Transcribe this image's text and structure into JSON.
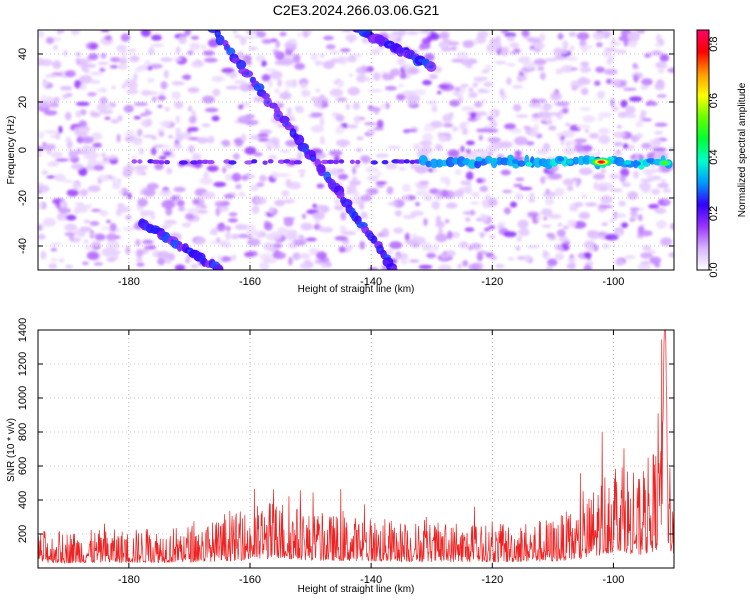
{
  "title": "C2E3.2024.266.03.06.G21",
  "chart_data": [
    {
      "type": "heatmap",
      "xlabel": "Height of straight line (km)",
      "ylabel": "Frequency (Hz)",
      "xlim": [
        -195,
        -90
      ],
      "ylim": [
        -50,
        50
      ],
      "xticks": [
        -180,
        -160,
        -140,
        -120,
        -100
      ],
      "yticks": [
        -40,
        -20,
        0,
        20,
        40
      ],
      "colorbar": {
        "label": "Normalized spectral amplitude",
        "range": [
          0.0,
          0.85
        ],
        "ticks": [
          0.0,
          0.2,
          0.4,
          0.6,
          0.8
        ],
        "colors": [
          "#ffffff",
          "#d9b3ff",
          "#9933ff",
          "#3300ff",
          "#0099ff",
          "#00ffcc",
          "#00ff33",
          "#66ff00",
          "#ffff00",
          "#ff9900",
          "#ff0000",
          "#ff0066"
        ]
      },
      "features": {
        "horizontal_line": {
          "freq": -5,
          "x_start": -180,
          "x_end": -90
        },
        "diagonal_lines": [
          {
            "from": [
              -166,
              50
            ],
            "to": [
              -150,
              -2
            ]
          },
          {
            "from": [
              -150,
              -2
            ],
            "to": [
              -136,
              -50
            ]
          },
          {
            "from": [
              -142,
              50
            ],
            "to": [
              -130,
              35
            ]
          },
          {
            "from": [
              -178,
              -30
            ],
            "to": [
              -165,
              -50
            ]
          }
        ],
        "peak": {
          "x": -102,
          "freq": -5,
          "value": 0.82
        }
      },
      "grid": true
    },
    {
      "type": "line",
      "xlabel": "Height of straight line (km)",
      "ylabel": "SNR (10 * v/v)",
      "xlim": [
        -195,
        -90
      ],
      "ylim": [
        0,
        1400
      ],
      "xticks": [
        -180,
        -160,
        -140,
        -120,
        -100
      ],
      "yticks": [
        200,
        400,
        600,
        800,
        1000,
        1200,
        1400
      ],
      "color": "#ee2222",
      "grid": true,
      "profile": [
        {
          "x": -195,
          "y": 150
        },
        {
          "x": -185,
          "y": 150
        },
        {
          "x": -175,
          "y": 160
        },
        {
          "x": -165,
          "y": 190
        },
        {
          "x": -158,
          "y": 260
        },
        {
          "x": -155,
          "y": 280
        },
        {
          "x": -150,
          "y": 220
        },
        {
          "x": -140,
          "y": 200
        },
        {
          "x": -130,
          "y": 180
        },
        {
          "x": -120,
          "y": 170
        },
        {
          "x": -110,
          "y": 200
        },
        {
          "x": -105,
          "y": 250
        },
        {
          "x": -102,
          "y": 380
        },
        {
          "x": -99,
          "y": 500
        },
        {
          "x": -96,
          "y": 350
        },
        {
          "x": -93,
          "y": 500
        },
        {
          "x": -91.8,
          "y": 1000
        },
        {
          "x": -91.5,
          "y": 1400
        },
        {
          "x": -91,
          "y": 600
        },
        {
          "x": -90,
          "y": 300
        }
      ]
    }
  ]
}
